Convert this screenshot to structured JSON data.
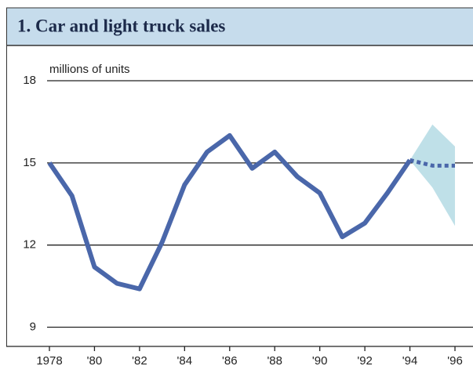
{
  "chart_data": {
    "type": "line",
    "title": "1. Car and light truck sales",
    "y_label": "millions of units",
    "x": [
      1978,
      1979,
      1980,
      1981,
      1982,
      1983,
      1984,
      1985,
      1986,
      1987,
      1988,
      1989,
      1990,
      1991,
      1992,
      1993,
      1994,
      1995,
      1996
    ],
    "series": [
      {
        "color": "#4a67aa",
        "style": "solid",
        "values": [
          15.0,
          13.8,
          11.2,
          10.6,
          10.4,
          12.1,
          14.2,
          15.4,
          16.0,
          14.8,
          15.4,
          14.5,
          13.9,
          12.3,
          12.8,
          13.9,
          15.1,
          null,
          null
        ]
      },
      {
        "color": "#4a67aa",
        "style": "dotted",
        "values": [
          null,
          null,
          null,
          null,
          null,
          null,
          null,
          null,
          null,
          null,
          null,
          null,
          null,
          null,
          null,
          null,
          15.1,
          14.9,
          14.9
        ]
      }
    ],
    "band": {
      "color": "#bfe0e8",
      "x": [
        1994,
        1995,
        1996
      ],
      "lower": [
        15.1,
        14.1,
        12.7
      ],
      "upper": [
        15.1,
        16.4,
        15.6
      ]
    },
    "xlim": [
      1978,
      1996.8
    ],
    "ylim": [
      8.3,
      18
    ],
    "yticks": [
      9,
      12,
      15,
      18
    ],
    "xticks": [
      {
        "value": 1978,
        "label": "1978"
      },
      {
        "value": 1980,
        "label": "'80"
      },
      {
        "value": 1982,
        "label": "'82"
      },
      {
        "value": 1984,
        "label": "'84"
      },
      {
        "value": 1986,
        "label": "'86"
      },
      {
        "value": 1988,
        "label": "'88"
      },
      {
        "value": 1990,
        "label": "'90"
      },
      {
        "value": 1992,
        "label": "'92"
      },
      {
        "value": 1994,
        "label": "'94"
      },
      {
        "value": 1996,
        "label": "'96"
      }
    ],
    "grid": true
  }
}
